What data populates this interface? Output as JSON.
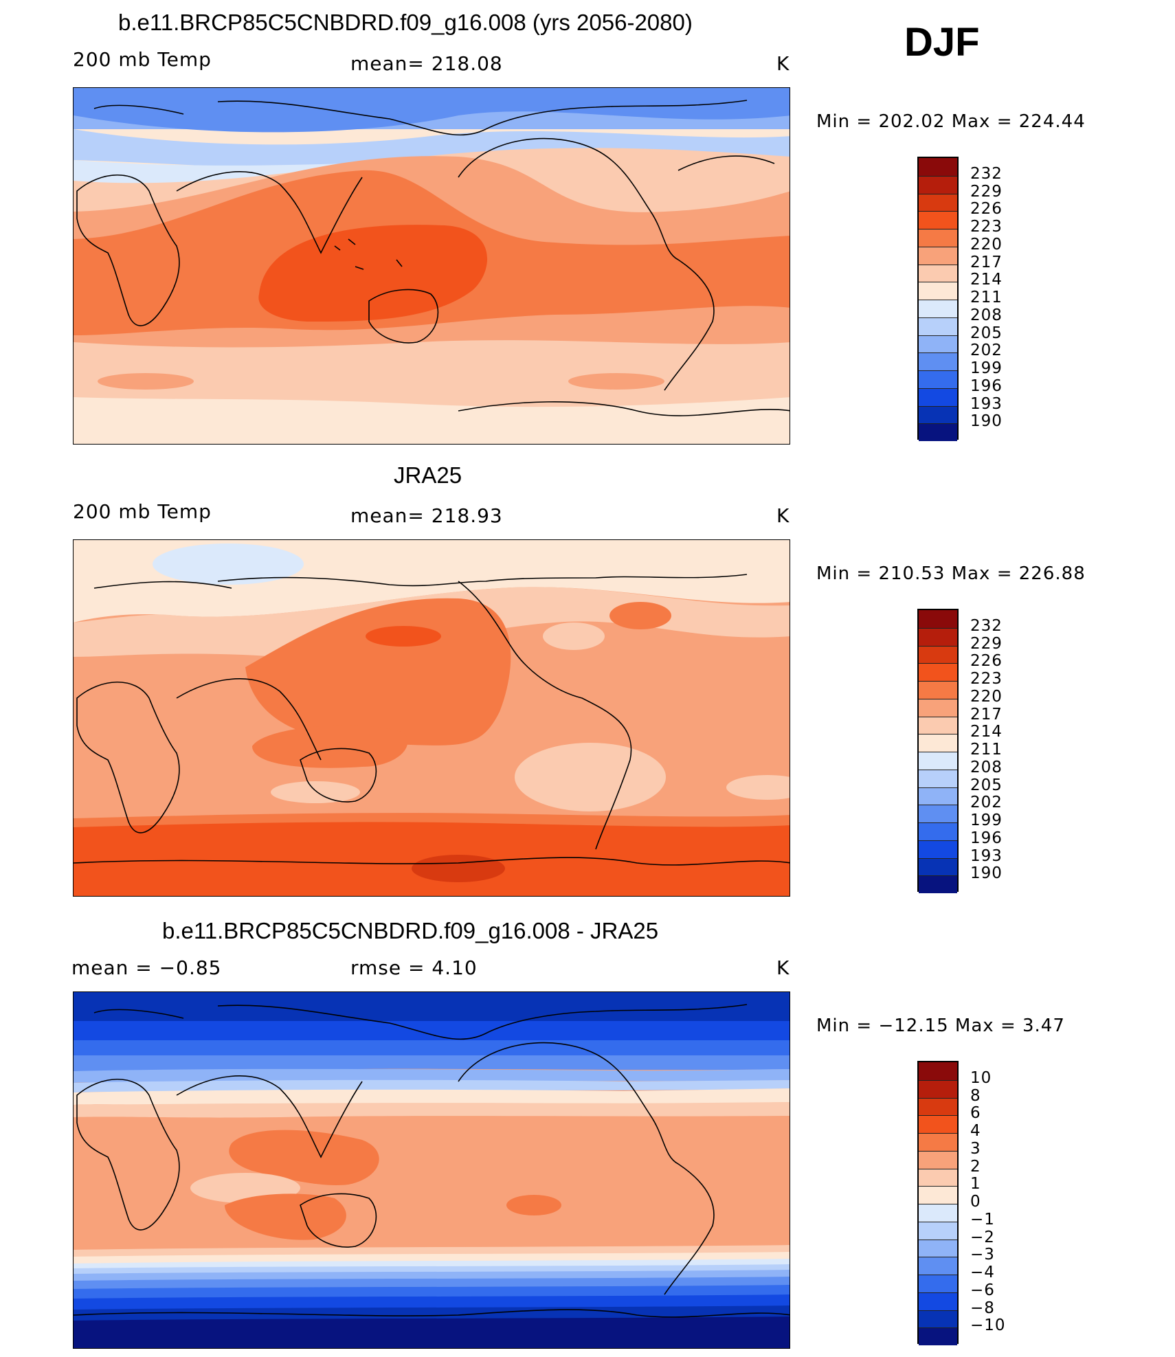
{
  "season": "DJF",
  "panels": [
    {
      "title": "b.e11.BRCP85C5CNBDRD.f09_g16.008 (yrs 2056-2080)",
      "left_label": "200 mb Temp",
      "center_label": "mean=  218.08",
      "units": "K",
      "minmax": "Min  =  202.02  Max  =  224.44"
    },
    {
      "title": "JRA25",
      "left_label": "200 mb Temp",
      "center_label": "mean=  218.93",
      "units": "K",
      "minmax": "Min  =  210.53  Max  =  226.88"
    },
    {
      "title": "b.e11.BRCP85C5CNBDRD.f09_g16.008 - JRA25",
      "left_label": "mean  =     −0.85",
      "center_label": "rmse  =      4.10",
      "units": "K",
      "minmax": "Min  =  −12.15  Max  =      3.47"
    }
  ],
  "colorbar_temp": {
    "labels": [
      "232",
      "229",
      "226",
      "223",
      "220",
      "217",
      "214",
      "211",
      "208",
      "205",
      "202",
      "199",
      "196",
      "193",
      "190"
    ],
    "colors": [
      "#8a0a0a",
      "#b51e0c",
      "#d83a10",
      "#f2531c",
      "#f57a45",
      "#f8a27a",
      "#fbcbb0",
      "#fde8d6",
      "#dbe9fb",
      "#b7d0fa",
      "#8fb3f7",
      "#5f8ff2",
      "#346ced",
      "#1349e2",
      "#0733b5",
      "#07137f"
    ]
  },
  "colorbar_diff": {
    "labels": [
      "10",
      "8",
      "6",
      "4",
      "3",
      "2",
      "1",
      "0",
      "−1",
      "−2",
      "−3",
      "−4",
      "−6",
      "−8",
      "−10"
    ],
    "colors": [
      "#8a0a0a",
      "#b51e0c",
      "#d83a10",
      "#f2531c",
      "#f57a45",
      "#f8a27a",
      "#fbcbb0",
      "#fde8d6",
      "#dbe9fb",
      "#b7d0fa",
      "#8fb3f7",
      "#5f8ff2",
      "#346ced",
      "#1349e2",
      "#0733b5",
      "#07137f"
    ]
  }
}
